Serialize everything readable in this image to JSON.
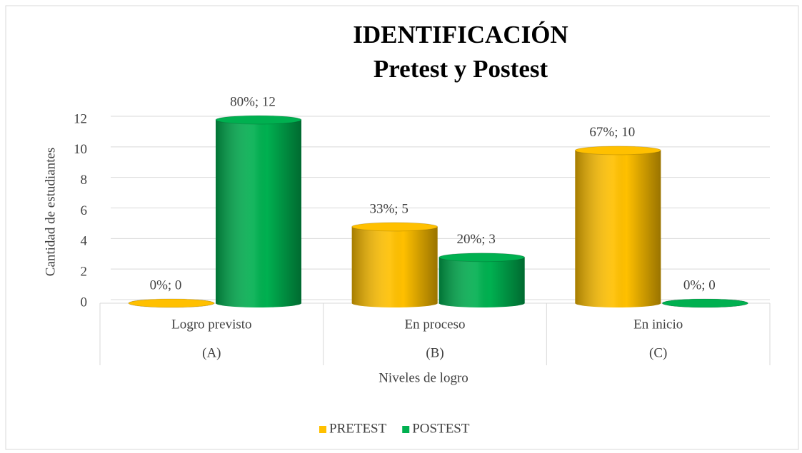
{
  "chart_data": {
    "type": "bar3d",
    "title": "IDENTIFICACIÓN",
    "subtitle": "Pretest y Postest",
    "categories": [
      "Logro previsto",
      "En proceso",
      "En inicio"
    ],
    "category_codes": [
      "(A)",
      "(B)",
      "(C)"
    ],
    "series": [
      {
        "name": "PRETEST",
        "color": "#ffc000",
        "values": [
          0,
          5,
          10
        ],
        "value_labels": [
          "0%; 0",
          "33%; 5",
          "67%; 10"
        ]
      },
      {
        "name": "POSTEST",
        "color": "#00b050",
        "values": [
          12,
          3,
          0
        ],
        "value_labels": [
          "80%; 12",
          "20%; 3",
          "0%; 0"
        ]
      }
    ],
    "ylim": [
      0,
      12
    ],
    "yticks": [
      0,
      2,
      4,
      6,
      8,
      10,
      12
    ],
    "ylabel": "Cantidad de estudiantes",
    "xlabel": "Niveles de logro",
    "grid": true,
    "legend": "bottom"
  }
}
